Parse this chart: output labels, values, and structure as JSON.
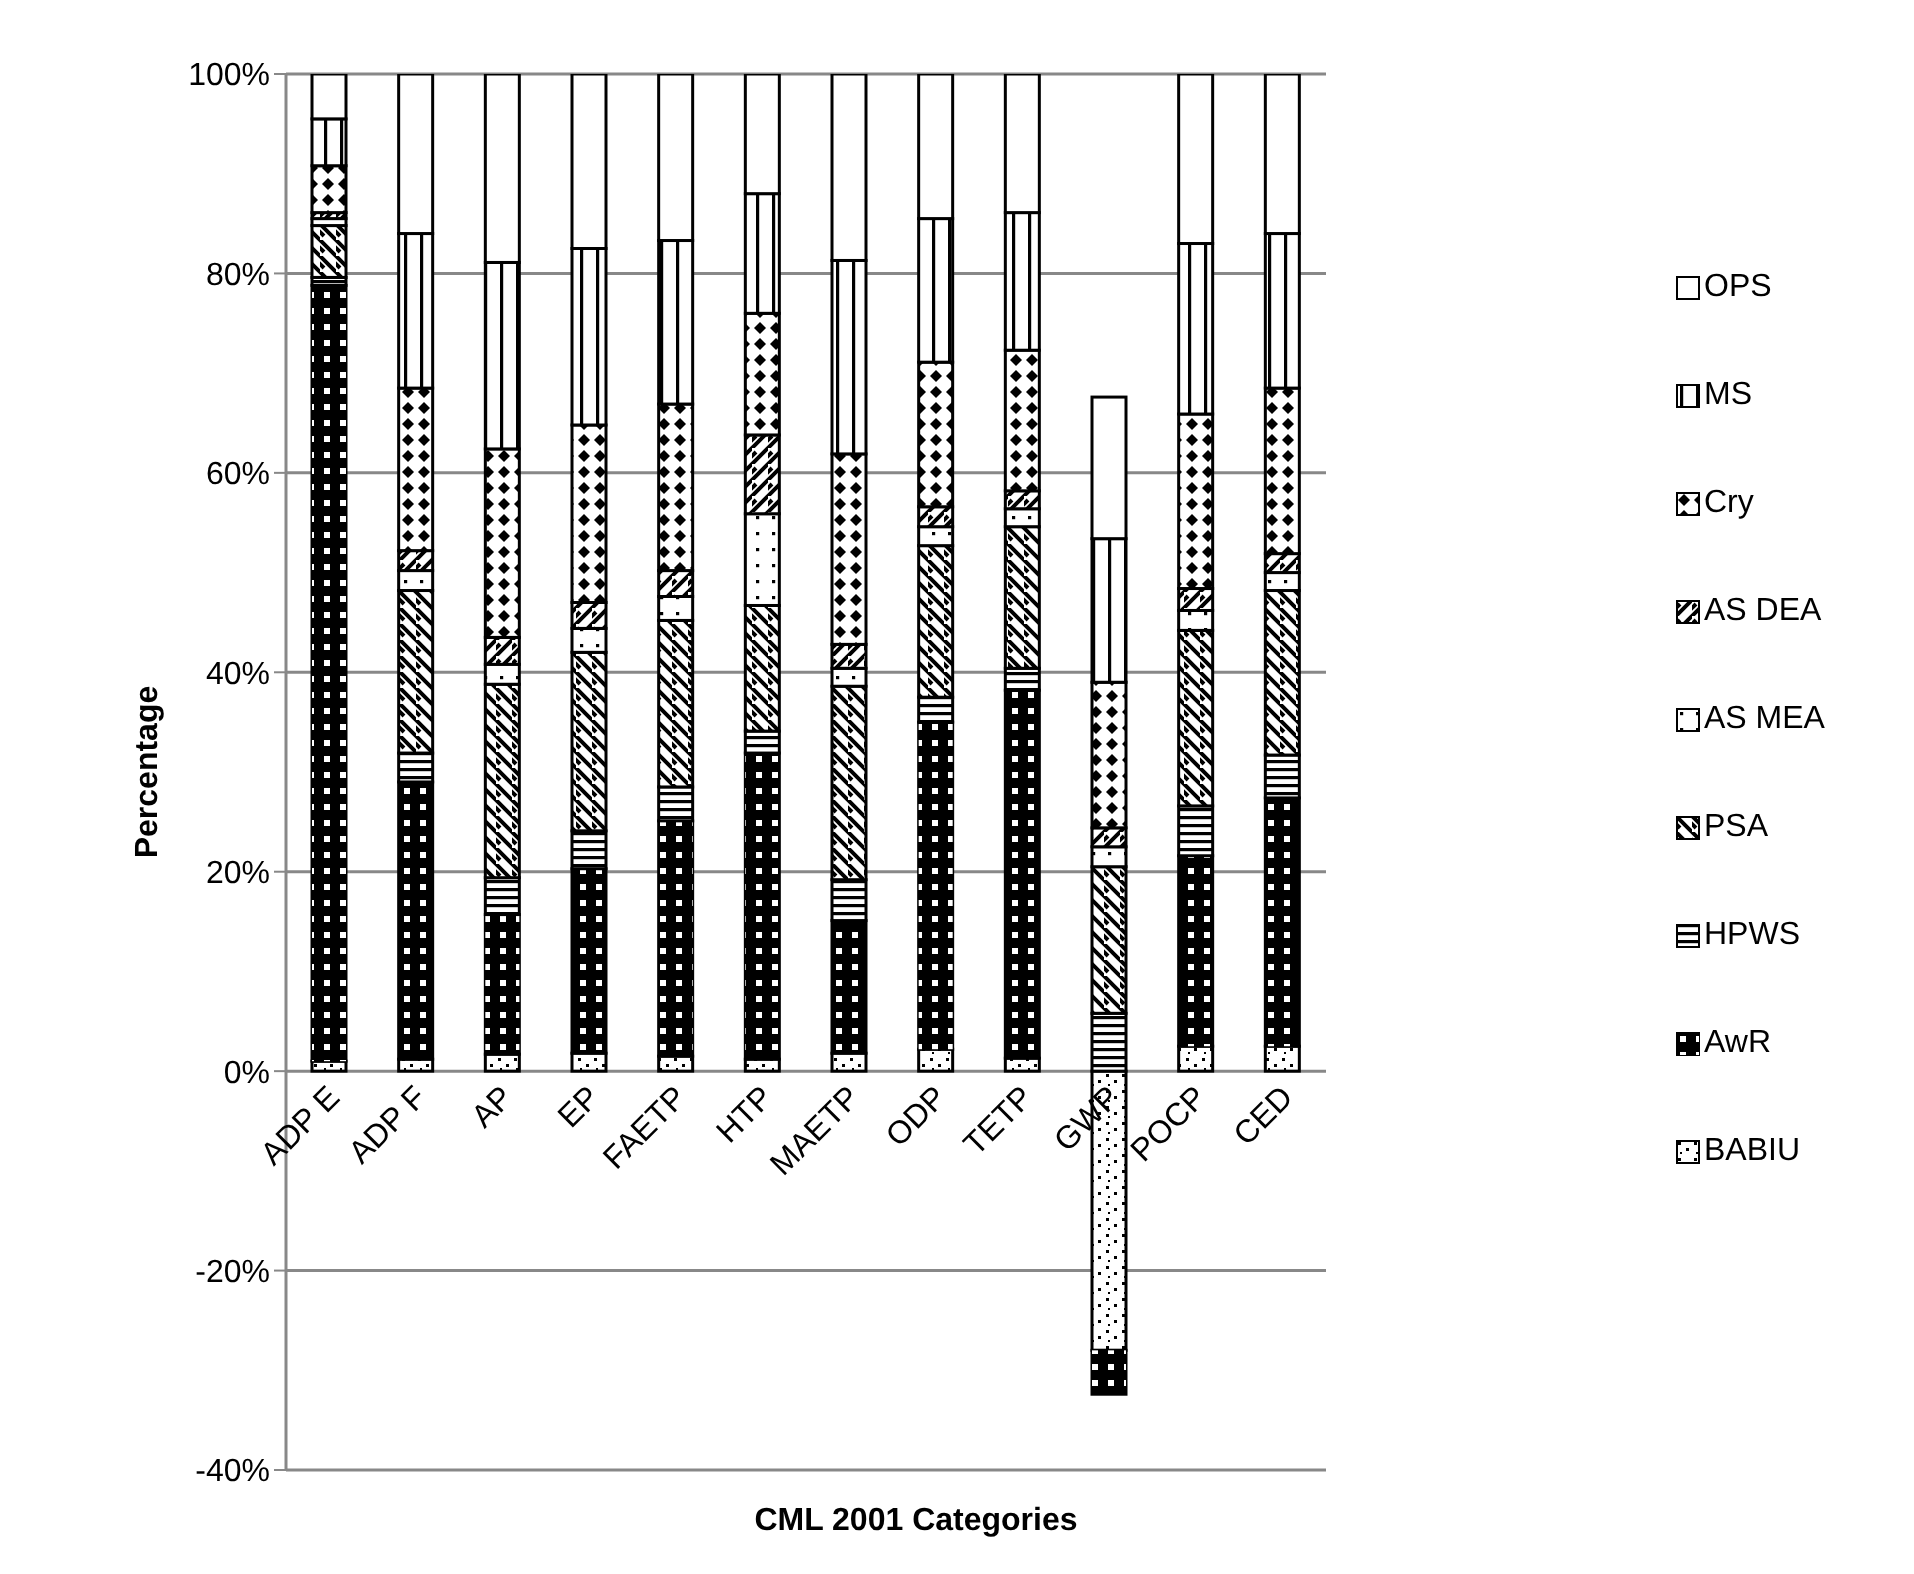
{
  "chart_data": {
    "type": "bar",
    "stacked": true,
    "ylabel": "Percentage",
    "xlabel": "CML 2001 Categories",
    "categories": [
      "ADP E",
      "ADP F",
      "AP",
      "EP",
      "FAETP",
      "HTP",
      "MAETP",
      "ODP",
      "TETP",
      "GWP",
      "POCP",
      "CED"
    ],
    "series": [
      {
        "name": "BABIU",
        "color": "#ffffff",
        "values": [
          1,
          1.2,
          1.7,
          1.8,
          1.5,
          1.2,
          1.8,
          2.2,
          1.3,
          -28,
          2.5,
          2.5
        ]
      },
      {
        "name": "AwR",
        "color": "#000000",
        "values": [
          77.8,
          27.8,
          14,
          18.5,
          23.6,
          30.7,
          13.3,
          32.8,
          36.9,
          -4.4,
          19.1,
          24.9
        ]
      },
      {
        "name": "HPWS",
        "color": "#ffffff",
        "values": [
          0.8,
          2.9,
          3.7,
          3.8,
          3.4,
          2.2,
          4.1,
          2.5,
          2.2,
          5.8,
          5,
          4.3
        ]
      },
      {
        "name": "PSA",
        "color": "#ffffff",
        "values": [
          5.2,
          16.3,
          19.4,
          17.9,
          16.7,
          12.6,
          19.4,
          15.2,
          14.2,
          14.7,
          17.6,
          16.5
        ]
      },
      {
        "name": "AS MEA",
        "color": "#ffffff",
        "values": [
          0.7,
          2,
          2,
          2.4,
          2.4,
          9.2,
          1.8,
          1.9,
          1.8,
          2,
          2,
          1.8
        ]
      },
      {
        "name": "AS DEA",
        "color": "#ffffff",
        "values": [
          0.6,
          2,
          2.7,
          2.6,
          2.6,
          7.9,
          2.4,
          2,
          1.8,
          1.9,
          2.2,
          1.9
        ]
      },
      {
        "name": "Cry",
        "color": "#ffffff",
        "values": [
          4.7,
          16.3,
          18.9,
          17.8,
          16.7,
          12.2,
          19.1,
          14.5,
          14.1,
          14.6,
          17.5,
          16.6
        ]
      },
      {
        "name": "MS",
        "color": "#ffffff",
        "values": [
          4.7,
          15.5,
          18.7,
          17.7,
          16.4,
          12,
          19.4,
          14.4,
          13.8,
          14.4,
          17.1,
          15.5
        ]
      },
      {
        "name": "OPS",
        "color": "#ffffff",
        "values": [
          4.5,
          16,
          18.9,
          17.5,
          16.7,
          12,
          18.7,
          14.5,
          13.9,
          14.2,
          17,
          16
        ]
      }
    ],
    "ylim": [
      -40,
      100
    ],
    "yticks": [
      {
        "value": -40,
        "label": "-40%"
      },
      {
        "value": -20,
        "label": "-20%"
      },
      {
        "value": 0,
        "label": "0%"
      },
      {
        "value": 20,
        "label": "20%"
      },
      {
        "value": 40,
        "label": "40%"
      },
      {
        "value": 60,
        "label": "60%"
      },
      {
        "value": 80,
        "label": "80%"
      },
      {
        "value": 100,
        "label": "100%"
      }
    ],
    "grid": "y",
    "legend": "right"
  }
}
